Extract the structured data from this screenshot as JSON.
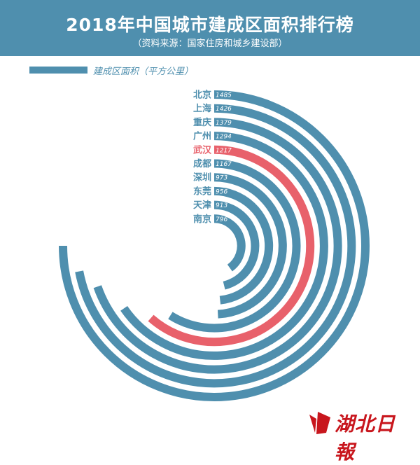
{
  "header": {
    "title": "2018年中国城市建成区面积排行榜",
    "subtitle": "（资料来源：国家住房和城乡建设部）"
  },
  "legend": {
    "label": "建成区面积（平方公里）"
  },
  "colors": {
    "primary": "#4f8fae",
    "highlight": "#e8616b",
    "brand": "#c8161d"
  },
  "chart_data": {
    "type": "radial-bar",
    "unit": "平方公里",
    "categories": [
      "北京",
      "上海",
      "重庆",
      "广州",
      "武汉",
      "成都",
      "深圳",
      "东莞",
      "天津",
      "南京"
    ],
    "values": [
      1485,
      1426,
      1379,
      1294,
      1217,
      1167,
      973,
      956,
      913,
      796
    ],
    "highlight": "武汉"
  },
  "logo": {
    "text": "湖北日報"
  }
}
